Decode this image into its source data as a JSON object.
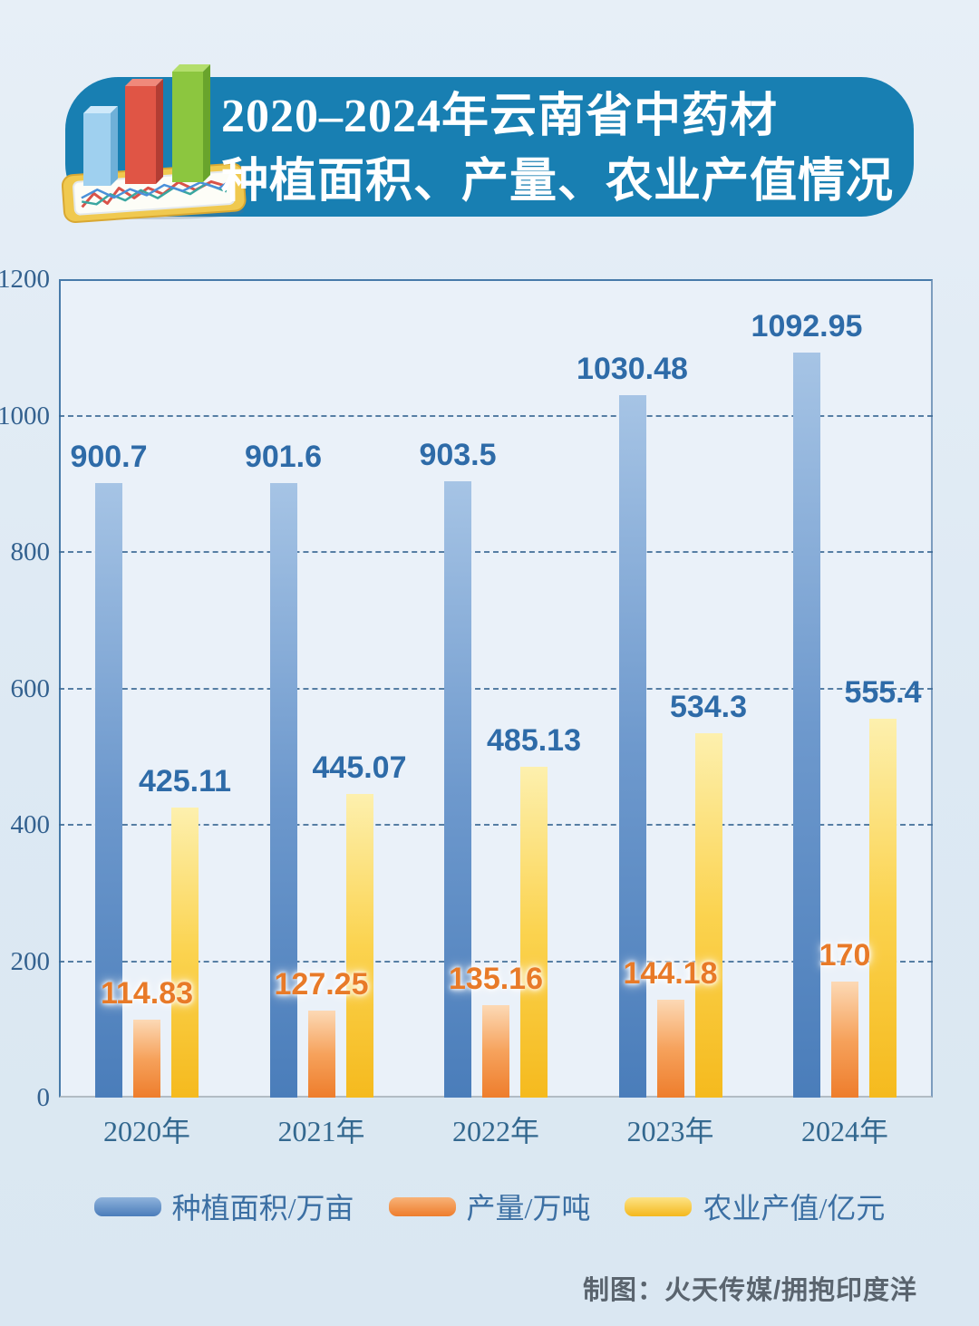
{
  "page": {
    "background": "#dde9f3"
  },
  "header": {
    "title_line1": "2020–2024年云南省中药材",
    "title_line2": "种植面积、产量、农业产值情况",
    "banner_color": "#187fb2",
    "icon": "bar-chart-tablet-icon"
  },
  "chart_data": {
    "type": "bar",
    "title": "2020–2024年云南省中药材种植面积、产量、农业产值情况",
    "categories": [
      "2020年",
      "2021年",
      "2022年",
      "2023年",
      "2024年"
    ],
    "series": [
      {
        "name": "种植面积/万亩",
        "values": [
          900.7,
          901.6,
          903.5,
          1030.48,
          1092.95
        ],
        "bar_colors": [
          "#a6c4e5",
          "#6e99cd",
          "#4a7dba"
        ],
        "legend_colors": [
          "#8fb3dc",
          "#4a7cba"
        ],
        "label_color": "#2e6ba8",
        "label_glow": false
      },
      {
        "name": "产量/万吨",
        "values": [
          114.83,
          127.25,
          135.16,
          144.18,
          170
        ],
        "bar_colors": [
          "#fcd9b5",
          "#f6a25c",
          "#ee7d2c"
        ],
        "legend_colors": [
          "#f8b278",
          "#ee7d2c"
        ],
        "label_color": "#e87a28",
        "label_glow": true
      },
      {
        "name": "农业产值/亿元",
        "values": [
          425.11,
          445.07,
          485.13,
          534.3,
          555.4
        ],
        "bar_colors": [
          "#fdf0ae",
          "#fbd34f",
          "#f5ba1e"
        ],
        "legend_colors": [
          "#fde387",
          "#f4b81e"
        ],
        "label_color": "#2e6ba8",
        "label_glow": false
      }
    ],
    "xlabel": "",
    "ylabel": "",
    "ylim": [
      0,
      1200
    ],
    "yticks": [
      1200,
      1000,
      800,
      600,
      400,
      200,
      0
    ],
    "grid": "horizontal-dashed",
    "legend_position": "bottom",
    "colors": {
      "axis_line": "#477aa9",
      "grid_dash": "#3d6a96",
      "bottom_axis": "#b2bcc4",
      "tick_label": "#33618f",
      "plot_background": "#eaf1f9"
    }
  },
  "footer": {
    "credit": "制图：火天传媒/拥抱印度洋"
  }
}
